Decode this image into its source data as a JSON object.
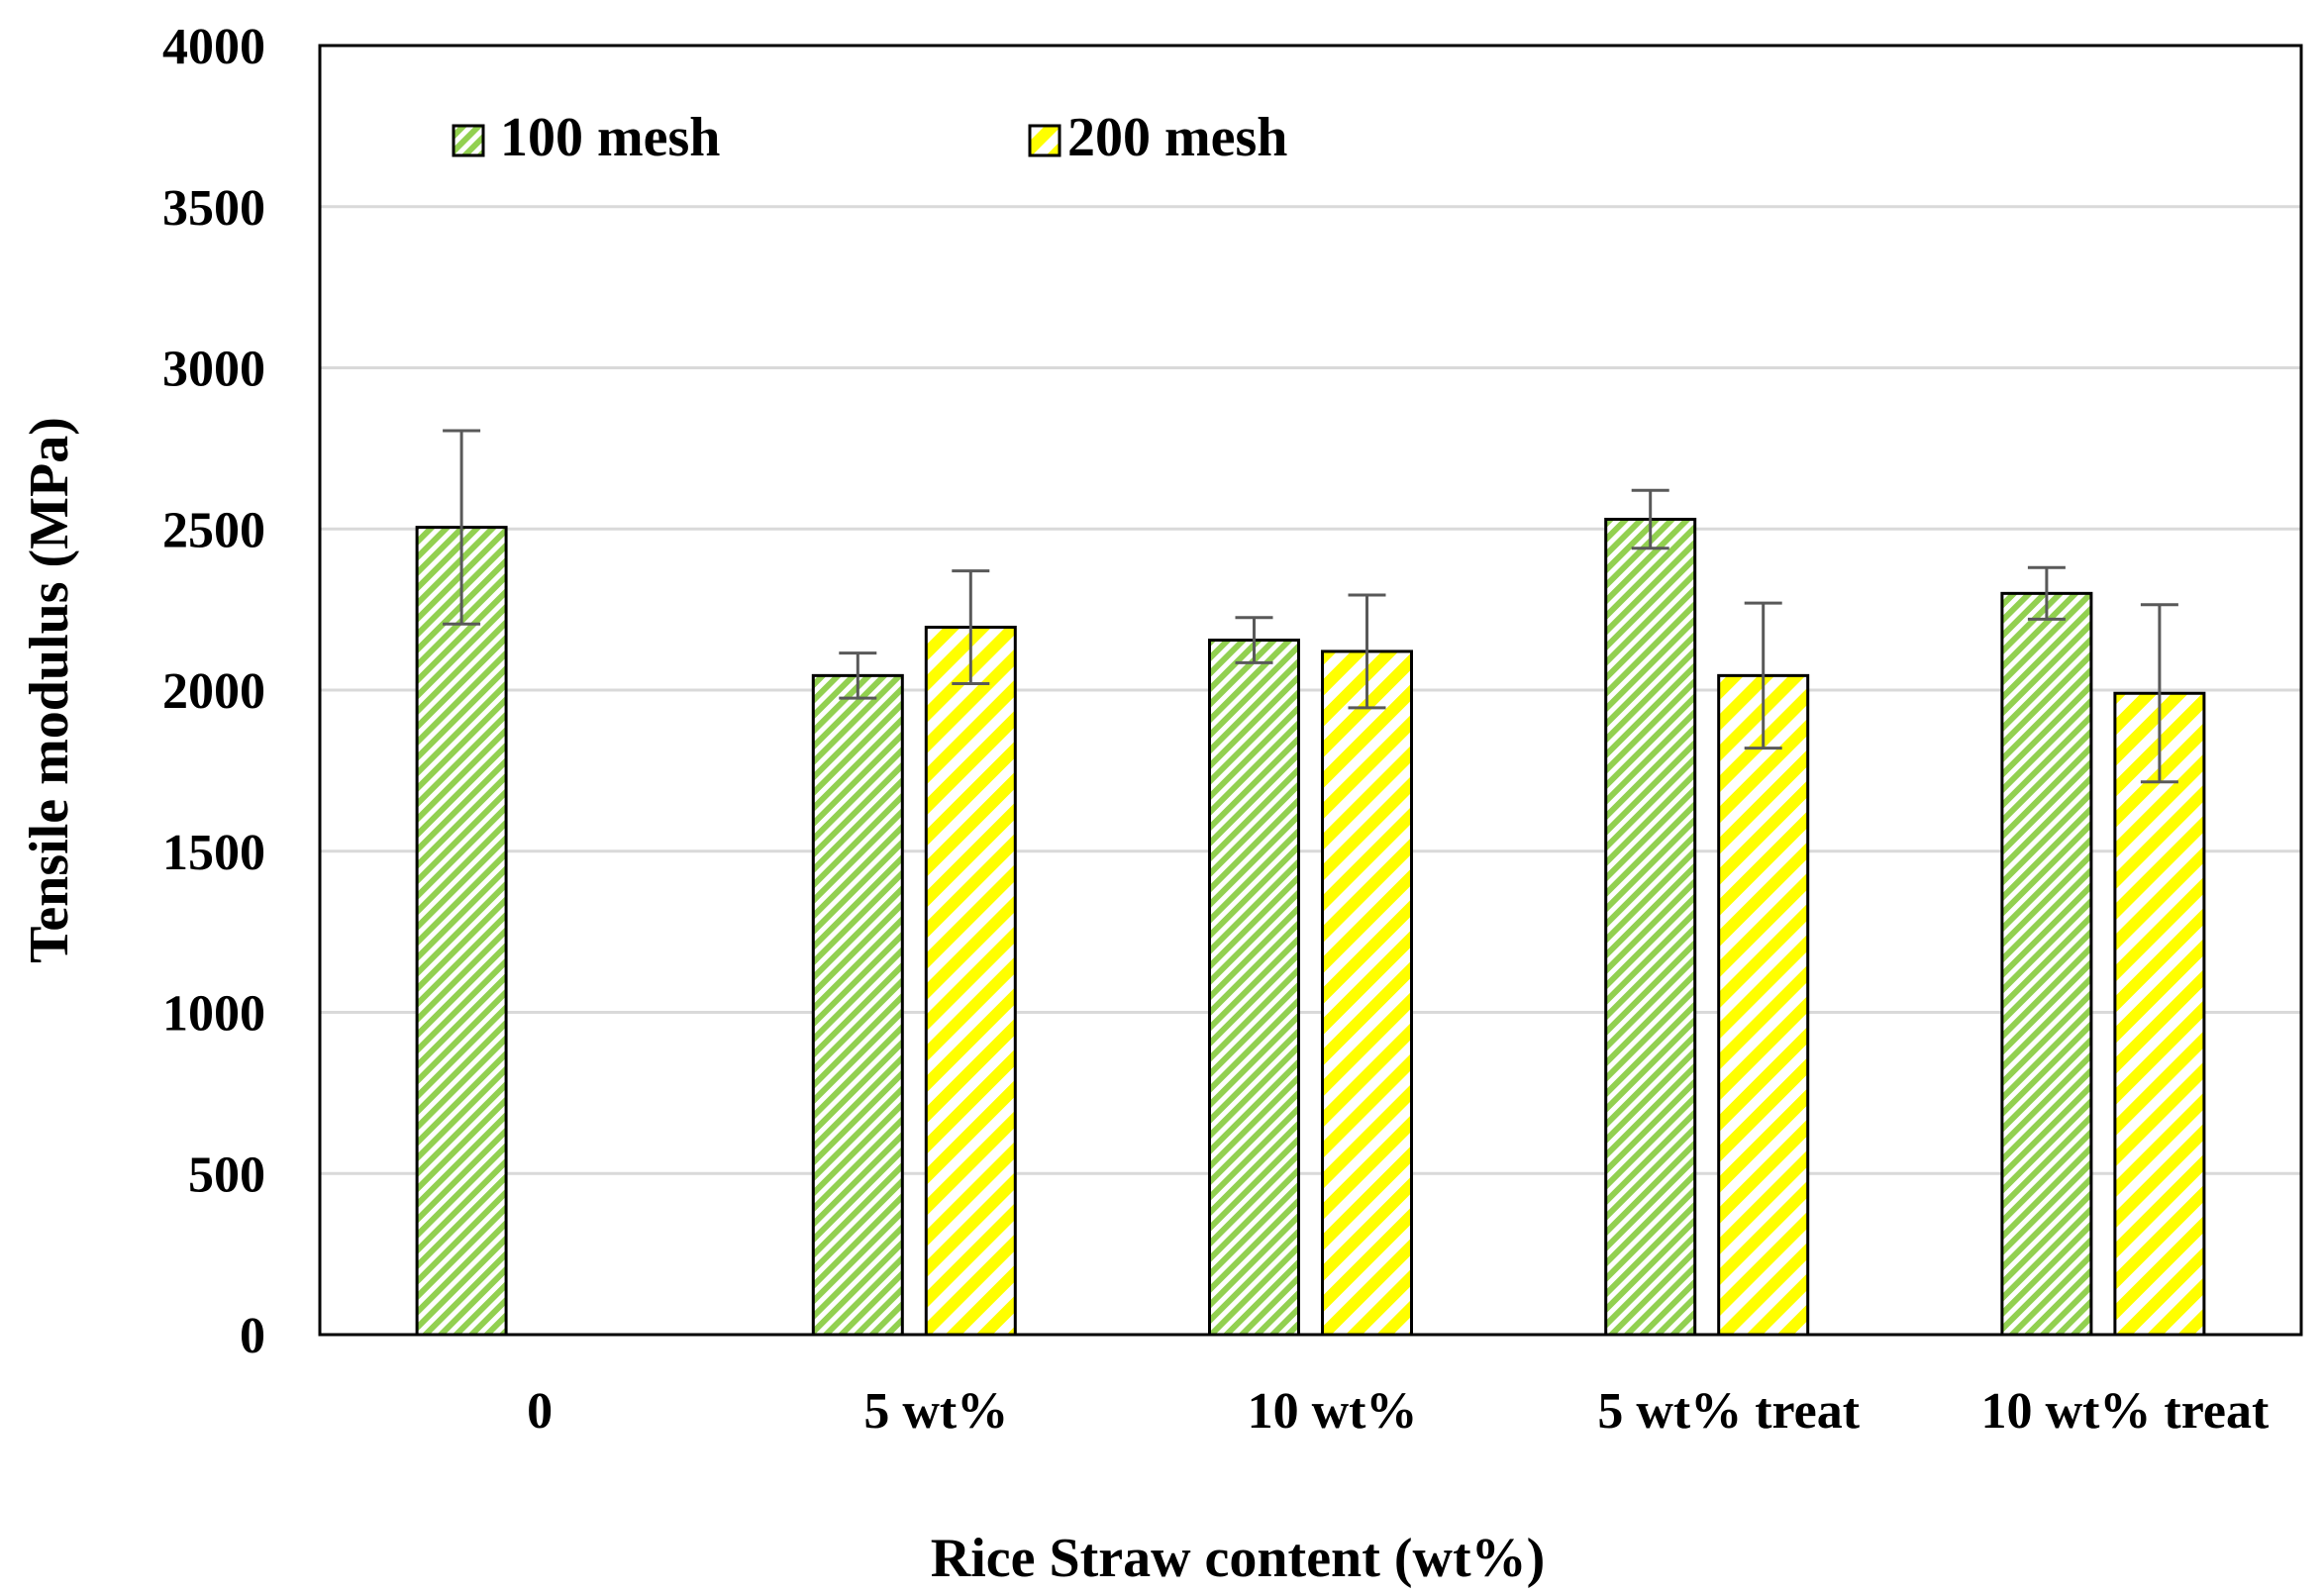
{
  "chart_data": {
    "type": "bar",
    "title": "",
    "xlabel": "Rice Straw content (wt%)",
    "ylabel": "Tensile modulus (MPa)",
    "ylim": [
      0,
      4000
    ],
    "ytick_step": 500,
    "yticks": [
      "0",
      "500",
      "1000",
      "1500",
      "2000",
      "2500",
      "3000",
      "3500",
      "4000"
    ],
    "grid": true,
    "legend_position": "top-left",
    "categories": [
      "0",
      "5 wt%",
      "10 wt%",
      "5 wt% treat",
      "10 wt% treat"
    ],
    "series": [
      {
        "name": "100 mesh",
        "color": "#92D050",
        "pattern": "dense-diagonal",
        "values": [
          2505,
          2045,
          2155,
          2530,
          2300
        ],
        "errors": [
          300,
          70,
          70,
          90,
          80
        ]
      },
      {
        "name": "200 mesh",
        "color": "#FFFF00",
        "pattern": "wide-diagonal",
        "values": [
          null,
          2195,
          2120,
          2045,
          1990
        ],
        "errors": [
          null,
          175,
          175,
          225,
          275
        ]
      }
    ]
  }
}
